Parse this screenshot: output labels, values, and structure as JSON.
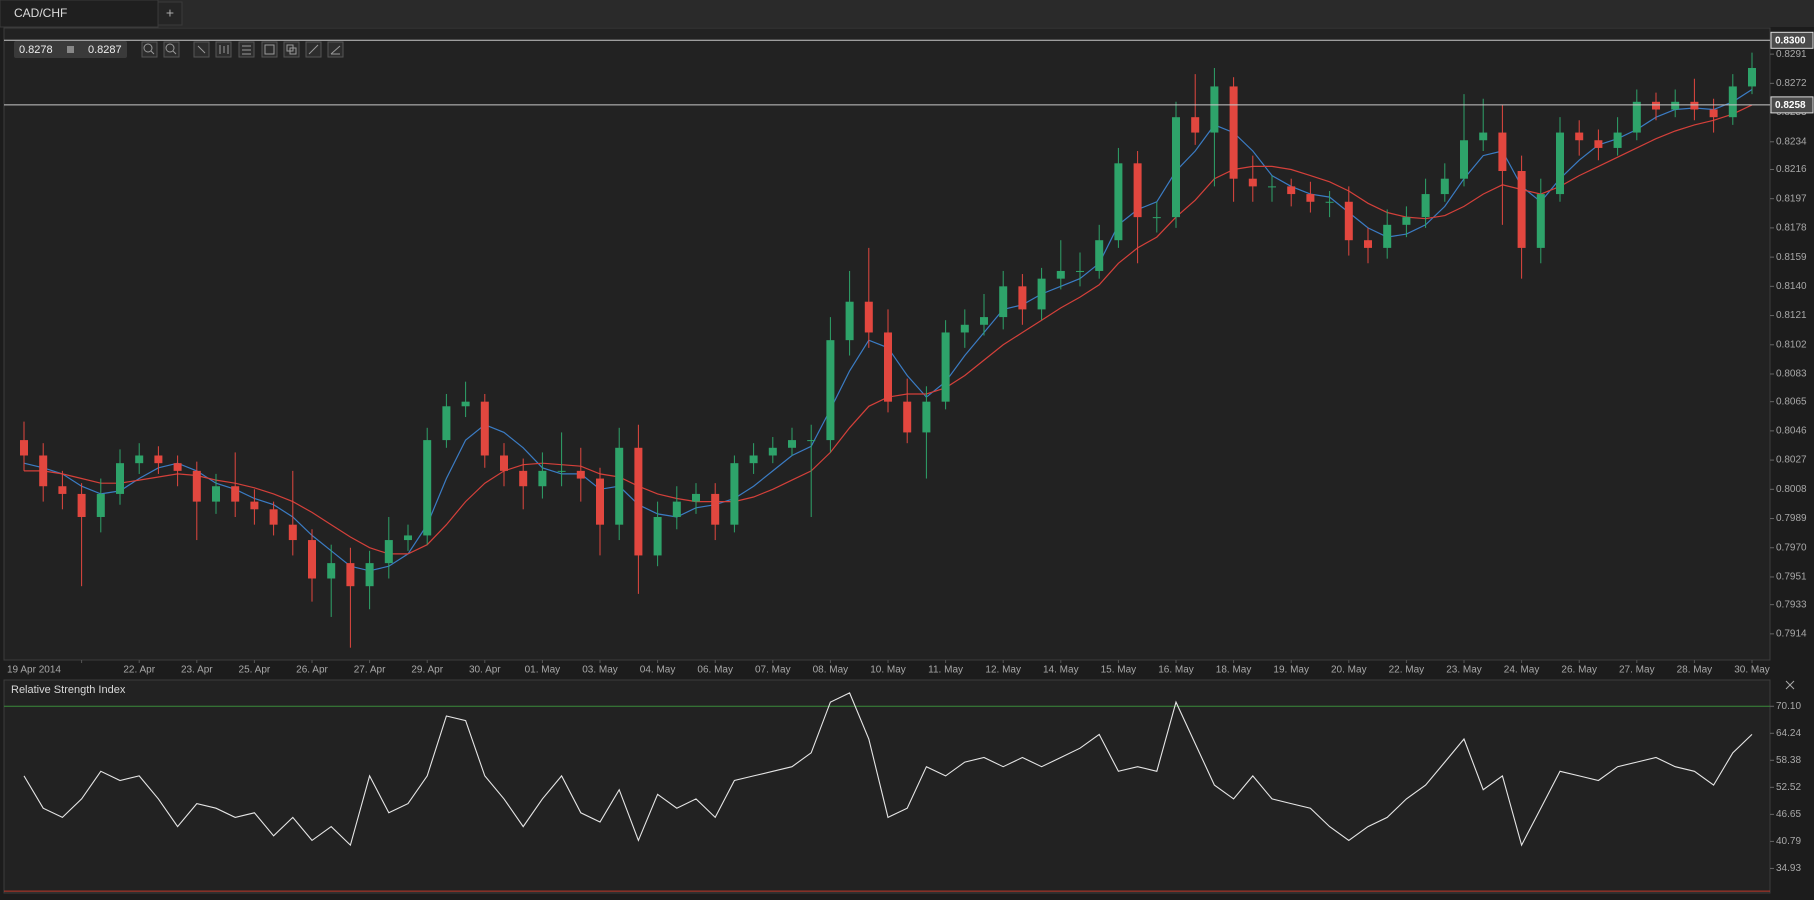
{
  "header": {
    "tab": "CAD/CHF",
    "add": "+"
  },
  "toolbar": {
    "bid": "0.8278",
    "ask": "0.8287"
  },
  "chart_data": [
    {
      "type": "candlestick",
      "categories": [
        null,
        null,
        null,
        "19 Apr 2014",
        null,
        null,
        "22. Apr",
        null,
        null,
        "23. Apr",
        null,
        null,
        "25. Apr",
        null,
        null,
        "26. Apr",
        null,
        null,
        "27. Apr",
        null,
        null,
        "29. Apr",
        null,
        null,
        "30. Apr",
        null,
        null,
        "01. May",
        null,
        null,
        "03. May",
        null,
        null,
        "04. May",
        null,
        null,
        "06. May",
        null,
        null,
        "07. May",
        null,
        null,
        "08. May",
        null,
        null,
        "10. May",
        null,
        null,
        "11. May",
        null,
        null,
        "12. May",
        null,
        null,
        "14. May",
        null,
        null,
        "15. May",
        null,
        null,
        "16. May",
        null,
        null,
        "18. May",
        null,
        null,
        "19. May",
        null,
        null,
        "20. May",
        null,
        null,
        "22. May",
        null,
        null,
        "23. May",
        null,
        null,
        "24. May",
        null,
        null,
        "26. May",
        null,
        null,
        "27. May",
        null,
        null,
        "28. May",
        null,
        null,
        "30. May"
      ],
      "open": [
        0.804,
        0.803,
        0.801,
        0.8005,
        0.799,
        0.8005,
        0.8025,
        0.803,
        0.8025,
        0.802,
        0.8,
        0.801,
        0.8,
        0.7995,
        0.7985,
        0.7975,
        0.795,
        0.796,
        0.7945,
        0.796,
        0.7975,
        0.7978,
        0.804,
        0.8062,
        0.8065,
        0.803,
        0.802,
        0.801,
        0.802,
        0.802,
        0.8015,
        0.7985,
        0.8035,
        0.7965,
        0.799,
        0.8,
        0.8005,
        0.7985,
        0.8025,
        0.803,
        0.8035,
        0.804,
        0.804,
        0.8105,
        0.813,
        0.811,
        0.8065,
        0.8045,
        0.8065,
        0.811,
        0.8115,
        0.812,
        0.814,
        0.8125,
        0.8145,
        0.815,
        0.815,
        0.817,
        0.822,
        0.8185,
        0.8185,
        0.825,
        0.824,
        0.827,
        0.821,
        0.8205,
        0.8205,
        0.82,
        0.8195,
        0.8195,
        0.817,
        0.8165,
        0.818,
        0.8185,
        0.82,
        0.821,
        0.8235,
        0.824,
        0.8215,
        0.8165,
        0.82,
        0.824,
        0.8235,
        0.823,
        0.824,
        0.826,
        0.8255,
        0.826,
        0.8255,
        0.825,
        0.827
      ],
      "high": [
        0.8052,
        0.8038,
        0.802,
        0.8012,
        0.8015,
        0.8034,
        0.8038,
        0.8036,
        0.803,
        0.8026,
        0.8018,
        0.8032,
        0.8008,
        0.8,
        0.802,
        0.7982,
        0.7972,
        0.797,
        0.7968,
        0.799,
        0.7985,
        0.8048,
        0.807,
        0.8078,
        0.807,
        0.8038,
        0.8028,
        0.8032,
        0.8045,
        0.8035,
        0.8022,
        0.8048,
        0.805,
        0.8,
        0.801,
        0.8012,
        0.8012,
        0.803,
        0.8038,
        0.8042,
        0.8048,
        0.805,
        0.812,
        0.815,
        0.8165,
        0.8125,
        0.808,
        0.8075,
        0.8118,
        0.8125,
        0.8135,
        0.815,
        0.8148,
        0.8152,
        0.817,
        0.8162,
        0.818,
        0.823,
        0.8228,
        0.8195,
        0.826,
        0.8278,
        0.8282,
        0.8276,
        0.8225,
        0.8212,
        0.821,
        0.8208,
        0.8202,
        0.8205,
        0.8178,
        0.819,
        0.8192,
        0.821,
        0.822,
        0.8265,
        0.8262,
        0.8258,
        0.8225,
        0.821,
        0.825,
        0.8248,
        0.8242,
        0.825,
        0.8268,
        0.8266,
        0.8268,
        0.8275,
        0.8262,
        0.8278,
        0.8292
      ],
      "low": [
        0.802,
        0.8,
        0.7995,
        0.7945,
        0.798,
        0.7998,
        0.8018,
        0.8018,
        0.801,
        0.7975,
        0.7992,
        0.799,
        0.7985,
        0.7978,
        0.7965,
        0.7935,
        0.7925,
        0.7905,
        0.793,
        0.795,
        0.7968,
        0.7972,
        0.8035,
        0.8055,
        0.8022,
        0.801,
        0.7995,
        0.8002,
        0.801,
        0.8,
        0.7965,
        0.7975,
        0.794,
        0.7958,
        0.7982,
        0.7992,
        0.7975,
        0.798,
        0.8018,
        0.8025,
        0.803,
        0.799,
        0.8032,
        0.8095,
        0.81,
        0.8058,
        0.8038,
        0.8015,
        0.806,
        0.81,
        0.8108,
        0.8112,
        0.8115,
        0.8118,
        0.8138,
        0.814,
        0.8145,
        0.8165,
        0.8155,
        0.8175,
        0.8178,
        0.8232,
        0.8205,
        0.8195,
        0.8195,
        0.8195,
        0.8192,
        0.8188,
        0.8185,
        0.816,
        0.8155,
        0.8158,
        0.8172,
        0.8178,
        0.8195,
        0.8205,
        0.8228,
        0.818,
        0.8145,
        0.8155,
        0.8195,
        0.8225,
        0.8222,
        0.8225,
        0.8235,
        0.8248,
        0.825,
        0.8248,
        0.824,
        0.8245,
        0.8265
      ],
      "close": [
        0.803,
        0.801,
        0.8005,
        0.799,
        0.8005,
        0.8025,
        0.803,
        0.8025,
        0.802,
        0.8,
        0.801,
        0.8,
        0.7995,
        0.7985,
        0.7975,
        0.795,
        0.796,
        0.7945,
        0.796,
        0.7975,
        0.7978,
        0.804,
        0.8062,
        0.8065,
        0.803,
        0.802,
        0.801,
        0.802,
        0.802,
        0.8015,
        0.7985,
        0.8035,
        0.7965,
        0.799,
        0.8,
        0.8005,
        0.7985,
        0.8025,
        0.803,
        0.8035,
        0.804,
        0.804,
        0.8105,
        0.813,
        0.811,
        0.8065,
        0.8045,
        0.8065,
        0.811,
        0.8115,
        0.812,
        0.814,
        0.8125,
        0.8145,
        0.815,
        0.815,
        0.817,
        0.822,
        0.8185,
        0.8185,
        0.825,
        0.824,
        0.827,
        0.821,
        0.8205,
        0.8205,
        0.82,
        0.8195,
        0.8195,
        0.817,
        0.8165,
        0.818,
        0.8185,
        0.82,
        0.821,
        0.8235,
        0.824,
        0.8215,
        0.8165,
        0.82,
        0.824,
        0.8235,
        0.823,
        0.824,
        0.826,
        0.8255,
        0.826,
        0.8255,
        0.825,
        0.827,
        0.8282
      ],
      "up_color": "#2ea36a",
      "down_color": "#e2473f",
      "overlays": [
        {
          "color": "#3b7cc4",
          "values": [
            0.8025,
            0.8022,
            0.8018,
            0.801,
            0.8005,
            0.8007,
            0.8015,
            0.8022,
            0.8025,
            0.802,
            0.8012,
            0.8008,
            0.8002,
            0.7998,
            0.799,
            0.7978,
            0.7968,
            0.7958,
            0.7955,
            0.7958,
            0.7966,
            0.7985,
            0.8015,
            0.804,
            0.805,
            0.8045,
            0.8035,
            0.8022,
            0.8018,
            0.8018,
            0.8008,
            0.801,
            0.7998,
            0.7992,
            0.799,
            0.7996,
            0.7998,
            0.8002,
            0.801,
            0.802,
            0.803,
            0.8036,
            0.806,
            0.8085,
            0.8105,
            0.81,
            0.8082,
            0.8068,
            0.8078,
            0.8095,
            0.811,
            0.8125,
            0.8128,
            0.8135,
            0.814,
            0.8145,
            0.8155,
            0.818,
            0.819,
            0.8195,
            0.8215,
            0.8228,
            0.8245,
            0.824,
            0.8228,
            0.8212,
            0.8205,
            0.82,
            0.8198,
            0.8188,
            0.8178,
            0.8172,
            0.8174,
            0.818,
            0.8192,
            0.821,
            0.8225,
            0.8228,
            0.8205,
            0.8195,
            0.821,
            0.8222,
            0.8232,
            0.8236,
            0.8242,
            0.825,
            0.8255,
            0.8256,
            0.8255,
            0.826,
            0.8268
          ]
        },
        {
          "color": "#d4403a",
          "values": [
            0.802,
            0.802,
            0.8018,
            0.8015,
            0.8012,
            0.8012,
            0.8014,
            0.8016,
            0.8018,
            0.8017,
            0.8014,
            0.8012,
            0.8009,
            0.8005,
            0.8,
            0.7993,
            0.7985,
            0.7977,
            0.797,
            0.7966,
            0.7966,
            0.7972,
            0.7985,
            0.8,
            0.8012,
            0.802,
            0.8024,
            0.8025,
            0.8024,
            0.8023,
            0.8018,
            0.8016,
            0.801,
            0.8005,
            0.8002,
            0.8,
            0.8,
            0.8,
            0.8003,
            0.8008,
            0.8014,
            0.802,
            0.8032,
            0.8048,
            0.8062,
            0.8068,
            0.807,
            0.807,
            0.8074,
            0.8082,
            0.8092,
            0.8102,
            0.811,
            0.8118,
            0.8126,
            0.8133,
            0.8141,
            0.8155,
            0.8165,
            0.8172,
            0.8185,
            0.8196,
            0.821,
            0.8216,
            0.8218,
            0.8218,
            0.8216,
            0.8212,
            0.8208,
            0.8202,
            0.8194,
            0.8188,
            0.8185,
            0.8184,
            0.8186,
            0.8192,
            0.82,
            0.8206,
            0.8203,
            0.82,
            0.8205,
            0.8212,
            0.8218,
            0.8224,
            0.823,
            0.8236,
            0.8241,
            0.8245,
            0.8248,
            0.8252,
            0.8258
          ]
        }
      ],
      "ylim": [
        0.7897,
        0.8308
      ],
      "yticks": [
        0.8291,
        0.8272,
        0.8253,
        0.8234,
        0.8216,
        0.8197,
        0.8178,
        0.8159,
        {
          "value": 0.814,
          "label": "0.8140"
        },
        0.8121,
        0.8102,
        0.8083,
        0.8065,
        0.8046,
        0.8027,
        0.8008,
        0.7989,
        {
          "value": 0.797,
          "label": "0.7970"
        },
        0.7951,
        0.7933,
        0.7914
      ],
      "hlines": [
        {
          "value": 0.83,
          "label": "0.8300"
        },
        0.8258
      ]
    },
    {
      "type": "line",
      "title": "Relative Strength Index",
      "color": "#e6e6e6",
      "values": [
        55,
        48,
        46,
        50,
        56,
        54,
        55,
        50,
        44,
        49,
        48,
        46,
        47,
        42,
        46,
        41,
        44,
        40,
        55,
        47,
        49,
        55,
        68,
        67,
        55,
        50,
        44,
        50,
        55,
        47,
        45,
        52,
        41,
        51,
        48,
        50,
        46,
        54,
        55,
        56,
        57,
        60,
        71,
        73,
        63,
        46,
        48,
        57,
        55,
        58,
        59,
        57,
        59,
        57,
        59,
        61,
        64,
        56,
        57,
        56,
        71,
        62,
        53,
        50,
        55,
        50,
        49,
        48,
        44,
        41,
        44,
        46,
        50,
        53,
        58,
        63,
        52,
        55,
        40,
        48,
        56,
        55,
        54,
        57,
        58,
        59,
        57,
        56,
        53,
        60,
        64
      ],
      "ylim": [
        29.6,
        75.8
      ],
      "yticks": [
        {
          "value": 70.1,
          "label": "70.10"
        },
        64.24,
        58.38,
        52.52,
        46.65,
        40.79,
        34.93
      ],
      "levels": [
        {
          "value": 70.1,
          "color": "#3a8a3a"
        },
        {
          "value": 30,
          "color": "#c0392b"
        }
      ]
    }
  ]
}
